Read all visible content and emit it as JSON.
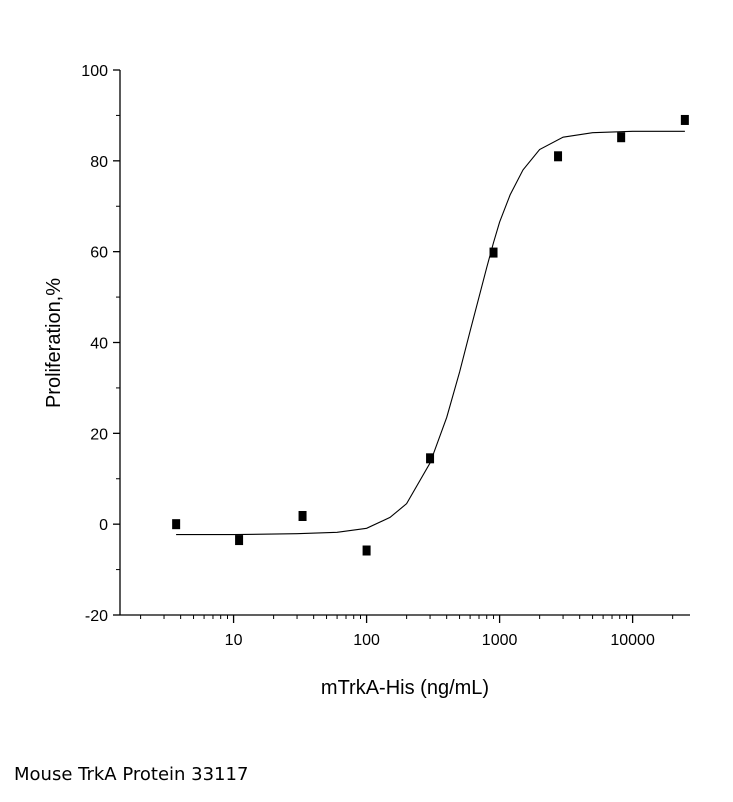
{
  "chart_data": {
    "type": "scatter",
    "xlabel": "mTrkA-His (ng/mL)",
    "ylabel": "Proliferation,%",
    "x_scale": "log",
    "xlim": [
      1.4,
      27000
    ],
    "ylim": [
      -20,
      100
    ],
    "x_ticks": [
      10,
      100,
      1000,
      10000
    ],
    "x_tick_labels": [
      "10",
      "100",
      "1000",
      "10000"
    ],
    "y_ticks": [
      -20,
      0,
      20,
      40,
      60,
      80,
      100
    ],
    "y_tick_labels": [
      "-20",
      "0",
      "20",
      "40",
      "60",
      "80",
      "100"
    ],
    "points": [
      {
        "x": 3.7,
        "y": 0
      },
      {
        "x": 11,
        "y": -3.5
      },
      {
        "x": 33,
        "y": 1.8
      },
      {
        "x": 100,
        "y": -5.8
      },
      {
        "x": 300,
        "y": 14.5
      },
      {
        "x": 900,
        "y": 59.8
      },
      {
        "x": 2750,
        "y": 81
      },
      {
        "x": 8200,
        "y": 85.2
      },
      {
        "x": 24700,
        "y": 89
      }
    ],
    "fit": {
      "type": "sigmoid",
      "x": [
        3.7,
        10,
        30,
        60,
        100,
        150,
        200,
        300,
        400,
        500,
        600,
        700,
        800,
        900,
        1000,
        1200,
        1500,
        2000,
        3000,
        5000,
        10000,
        24700
      ],
      "y": [
        -2.3,
        -2.3,
        -2.1,
        -1.8,
        -0.9,
        1.5,
        4.5,
        13.5,
        23.5,
        33.5,
        42.5,
        50,
        56.5,
        62,
        66.5,
        72.5,
        78,
        82.5,
        85.2,
        86.2,
        86.5,
        86.5
      ]
    },
    "grid": false
  },
  "caption": "Mouse TrkA Protein 33117"
}
